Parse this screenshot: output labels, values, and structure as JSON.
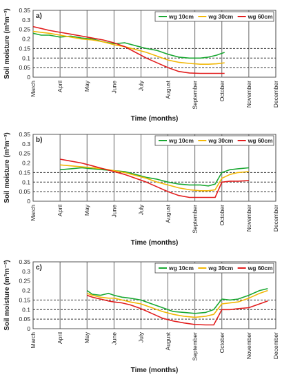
{
  "months": [
    "March",
    "April",
    "May",
    "June",
    "July",
    "August",
    "September",
    "October",
    "November",
    "December"
  ],
  "y_ticks": [
    "0",
    "0.05",
    "0.1",
    "0.15",
    "0.2",
    "0.25",
    "0.3",
    "0.35"
  ],
  "colors": {
    "wg10": "#1aa832",
    "wg30": "#f2b705",
    "wg60": "#e21d1d",
    "dotted": "#333333",
    "grid": "#555555"
  },
  "chart_data": [
    {
      "type": "line",
      "panel_label": "a)",
      "xlabel": "Time (months)",
      "ylabel": "Soil moisture (m³m⁻³)",
      "ylim": [
        0,
        0.35
      ],
      "x_unit": "months since start of March",
      "xlim": [
        0,
        9
      ],
      "reference_lines": [
        0.05,
        0.1,
        0.15
      ],
      "legend_position": "top-right",
      "series": [
        {
          "name": "wg 10cm",
          "color": "#1aa832",
          "x": [
            0.0,
            0.3,
            0.6,
            1.0,
            1.4,
            1.8,
            2.2,
            2.6,
            3.0,
            3.4,
            3.8,
            4.2,
            4.6,
            5.0,
            5.4,
            5.8,
            6.2,
            6.5,
            6.8,
            7.1
          ],
          "values": [
            0.23,
            0.22,
            0.22,
            0.21,
            0.215,
            0.205,
            0.2,
            0.185,
            0.175,
            0.18,
            0.165,
            0.15,
            0.14,
            0.12,
            0.105,
            0.1,
            0.1,
            0.105,
            0.115,
            0.13
          ]
        },
        {
          "name": "wg 30cm",
          "color": "#f2b705",
          "x": [
            0.0,
            0.3,
            0.6,
            1.0,
            1.4,
            1.8,
            2.2,
            2.6,
            3.0,
            3.4,
            3.8,
            4.2,
            4.6,
            5.0,
            5.4,
            5.8,
            6.2,
            6.5,
            6.8,
            7.1
          ],
          "values": [
            0.24,
            0.235,
            0.23,
            0.22,
            0.21,
            0.2,
            0.195,
            0.185,
            0.17,
            0.16,
            0.145,
            0.13,
            0.11,
            0.09,
            0.078,
            0.072,
            0.068,
            0.068,
            0.07,
            0.075
          ]
        },
        {
          "name": "wg 60cm",
          "color": "#e21d1d",
          "x": [
            0.0,
            0.3,
            0.6,
            1.0,
            1.4,
            1.8,
            2.2,
            2.6,
            3.0,
            3.4,
            3.8,
            4.2,
            4.6,
            5.0,
            5.4,
            5.8,
            6.2,
            6.5,
            6.8,
            7.1
          ],
          "values": [
            0.265,
            0.255,
            0.245,
            0.235,
            0.225,
            0.215,
            0.205,
            0.195,
            0.18,
            0.16,
            0.13,
            0.1,
            0.075,
            0.05,
            0.03,
            0.022,
            0.02,
            0.02,
            0.02,
            0.02
          ]
        }
      ]
    },
    {
      "type": "line",
      "panel_label": "b)",
      "xlabel": "Time (months)",
      "ylabel": "Soil moisture (m³m⁻³)",
      "ylim": [
        0,
        0.35
      ],
      "x_unit": "months since start of March",
      "xlim": [
        0,
        9
      ],
      "reference_lines": [
        0.05,
        0.1,
        0.15
      ],
      "legend_position": "top-right",
      "series": [
        {
          "name": "wg 10cm",
          "color": "#1aa832",
          "x": [
            1.0,
            1.4,
            1.8,
            2.2,
            2.6,
            3.0,
            3.4,
            3.8,
            4.2,
            4.6,
            5.0,
            5.4,
            5.8,
            6.2,
            6.5,
            6.75,
            7.0,
            7.3,
            7.6,
            8.0
          ],
          "values": [
            0.165,
            0.17,
            0.175,
            0.17,
            0.165,
            0.16,
            0.155,
            0.14,
            0.125,
            0.115,
            0.1,
            0.09,
            0.085,
            0.085,
            0.08,
            0.09,
            0.15,
            0.165,
            0.17,
            0.175
          ]
        },
        {
          "name": "wg 30cm",
          "color": "#f2b705",
          "x": [
            1.0,
            1.4,
            1.8,
            2.2,
            2.6,
            3.0,
            3.4,
            3.8,
            4.2,
            4.6,
            5.0,
            5.4,
            5.8,
            6.2,
            6.5,
            6.75,
            7.0,
            7.3,
            7.6,
            8.0
          ],
          "values": [
            0.19,
            0.185,
            0.18,
            0.175,
            0.17,
            0.16,
            0.15,
            0.135,
            0.12,
            0.1,
            0.085,
            0.07,
            0.06,
            0.055,
            0.055,
            0.06,
            0.12,
            0.14,
            0.15,
            0.155
          ]
        },
        {
          "name": "wg 60cm",
          "color": "#e21d1d",
          "x": [
            1.0,
            1.4,
            1.8,
            2.2,
            2.6,
            3.0,
            3.4,
            3.8,
            4.2,
            4.6,
            5.0,
            5.4,
            5.8,
            6.2,
            6.5,
            6.75,
            7.0,
            7.3,
            7.6,
            8.0
          ],
          "values": [
            0.22,
            0.21,
            0.2,
            0.185,
            0.17,
            0.155,
            0.14,
            0.12,
            0.1,
            0.075,
            0.05,
            0.03,
            0.02,
            0.02,
            0.02,
            0.02,
            0.1,
            0.105,
            0.105,
            0.108
          ]
        }
      ]
    },
    {
      "type": "line",
      "panel_label": "c)",
      "xlabel": "Time (months)",
      "ylabel": "Soil moisture (m³m⁻³)",
      "ylim": [
        0,
        0.35
      ],
      "x_unit": "months since start of March",
      "xlim": [
        0,
        9
      ],
      "reference_lines": [
        0.05,
        0.1,
        0.15
      ],
      "legend_position": "top-right",
      "series": [
        {
          "name": "wg 10cm",
          "color": "#1aa832",
          "x": [
            2.0,
            2.2,
            2.5,
            2.8,
            3.0,
            3.3,
            3.6,
            4.0,
            4.4,
            4.8,
            5.2,
            5.6,
            6.0,
            6.4,
            6.7,
            7.0,
            7.3,
            7.6,
            8.0,
            8.4,
            8.7
          ],
          "values": [
            0.2,
            0.18,
            0.175,
            0.185,
            0.175,
            0.165,
            0.16,
            0.15,
            0.13,
            0.11,
            0.09,
            0.085,
            0.08,
            0.085,
            0.1,
            0.155,
            0.15,
            0.155,
            0.175,
            0.2,
            0.21
          ]
        },
        {
          "name": "wg 30cm",
          "color": "#f2b705",
          "x": [
            2.0,
            2.2,
            2.5,
            2.8,
            3.0,
            3.3,
            3.6,
            4.0,
            4.4,
            4.8,
            5.2,
            5.6,
            6.0,
            6.4,
            6.7,
            7.0,
            7.3,
            7.6,
            8.0,
            8.4,
            8.7
          ],
          "values": [
            0.185,
            0.175,
            0.165,
            0.16,
            0.16,
            0.15,
            0.14,
            0.13,
            0.11,
            0.09,
            0.075,
            0.065,
            0.06,
            0.065,
            0.075,
            0.13,
            0.135,
            0.14,
            0.16,
            0.185,
            0.2
          ]
        },
        {
          "name": "wg 60cm",
          "color": "#e21d1d",
          "x": [
            2.0,
            2.2,
            2.5,
            2.8,
            3.0,
            3.3,
            3.6,
            4.0,
            4.4,
            4.8,
            5.2,
            5.6,
            6.0,
            6.4,
            6.7,
            7.0,
            7.3,
            7.6,
            8.0,
            8.4,
            8.7
          ],
          "values": [
            0.175,
            0.165,
            0.155,
            0.145,
            0.14,
            0.135,
            0.125,
            0.105,
            0.08,
            0.055,
            0.04,
            0.03,
            0.022,
            0.02,
            0.02,
            0.1,
            0.1,
            0.105,
            0.11,
            0.13,
            0.145
          ]
        }
      ]
    }
  ]
}
